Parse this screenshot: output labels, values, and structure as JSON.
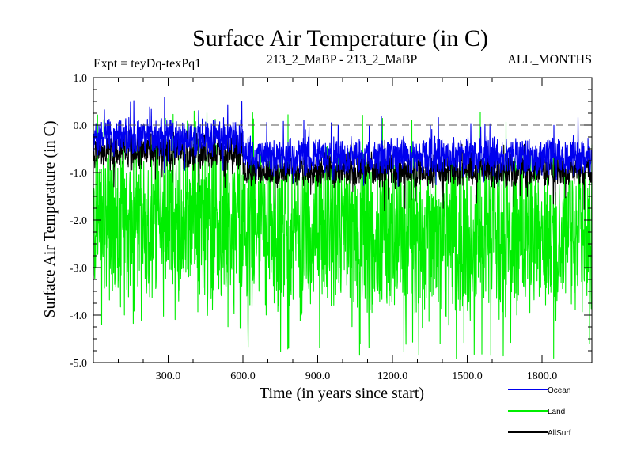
{
  "chart_data": {
    "type": "line",
    "title": "Surface Air Temperature (in C)",
    "subtitle_left": "Expt = teyDq-texPq1",
    "subtitle_center": "213_2_MaBP - 213_2_MaBP",
    "subtitle_right": "ALL_MONTHS",
    "xlabel": "Time (in years since start)",
    "ylabel": "Surface Air Temperature (in C)",
    "xlim": [
      0,
      2000
    ],
    "ylim": [
      -5.0,
      1.0
    ],
    "x_ticks": [
      {
        "value": 300,
        "label": "300.0"
      },
      {
        "value": 600,
        "label": "600.0"
      },
      {
        "value": 900,
        "label": "900.0"
      },
      {
        "value": 1200,
        "label": "1200.0"
      },
      {
        "value": 1500,
        "label": "1500.0"
      },
      {
        "value": 1800,
        "label": "1800.0"
      }
    ],
    "y_ticks": [
      {
        "value": 1.0,
        "label": "1.0"
      },
      {
        "value": 0.0,
        "label": "0.0"
      },
      {
        "value": -1.0,
        "label": "-1.0"
      },
      {
        "value": -2.0,
        "label": "-2.0"
      },
      {
        "value": -3.0,
        "label": "-3.0"
      },
      {
        "value": -4.0,
        "label": "-4.0"
      },
      {
        "value": -5.0,
        "label": "-5.0"
      }
    ],
    "reference_line": 0.0,
    "legend_position": "bottom-right",
    "series": [
      {
        "name": "Land",
        "color": "#00ee00",
        "segments": [
          {
            "x0": 0,
            "x1": 600,
            "mean": -2.1,
            "amplitude": 2.0,
            "min": -4.3,
            "max": 0.3
          },
          {
            "x0": 600,
            "x1": 2000,
            "mean": -2.3,
            "amplitude": 2.0,
            "min": -4.95,
            "max": 0.35
          }
        ]
      },
      {
        "name": "Ocean",
        "color": "#0000ee",
        "segments": [
          {
            "x0": 0,
            "x1": 600,
            "mean": -0.25,
            "amplitude": 0.45,
            "min": -1.0,
            "max": 0.6
          },
          {
            "x0": 600,
            "x1": 2000,
            "mean": -0.65,
            "amplitude": 0.45,
            "min": -1.3,
            "max": 0.2
          }
        ]
      },
      {
        "name": "AllSurf",
        "color": "#000000",
        "segments": [
          {
            "x0": 0,
            "x1": 600,
            "mean": -0.55,
            "amplitude": 0.45,
            "min": -1.4,
            "max": 0.1
          },
          {
            "x0": 600,
            "x1": 2000,
            "mean": -0.95,
            "amplitude": 0.4,
            "min": -1.8,
            "max": -0.3
          }
        ]
      }
    ]
  }
}
